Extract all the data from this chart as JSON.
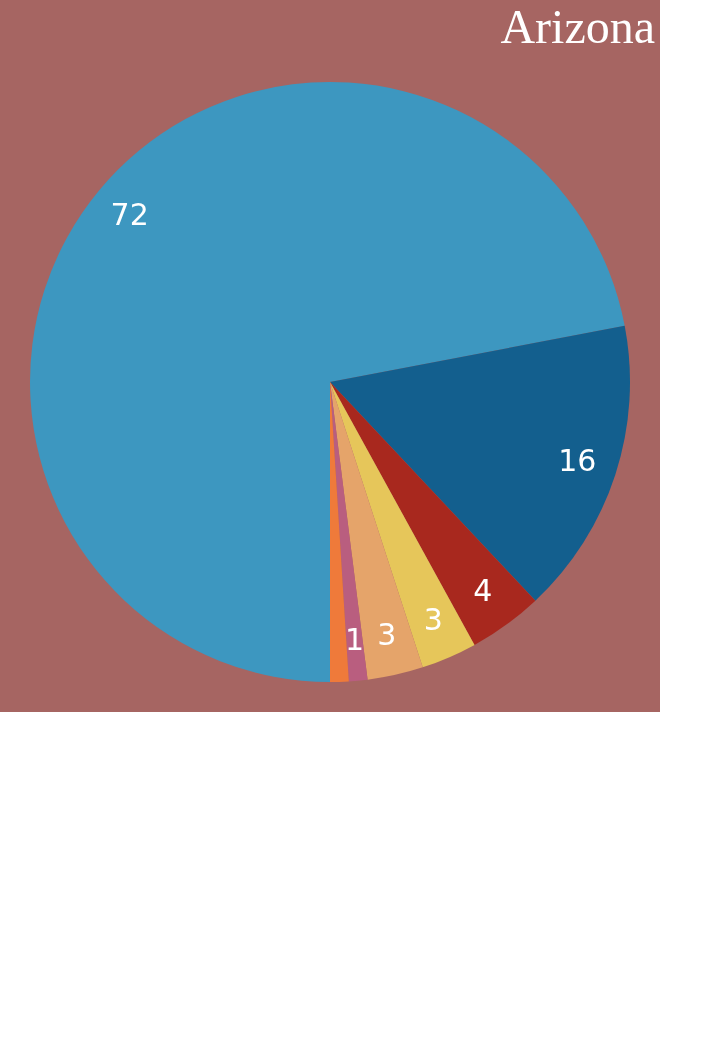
{
  "chart_data": {
    "type": "pie",
    "title": "Arizona",
    "categories": [
      null,
      null,
      null,
      null,
      null,
      null,
      null
    ],
    "values": [
      72,
      16,
      4,
      3,
      3,
      1,
      1
    ],
    "colors": [
      "#3d97c0",
      "#135f8e",
      "#a8281e",
      "#e6c65a",
      "#e5a46a",
      "#b95e7f",
      "#ef7a3a"
    ],
    "value_labels": [
      "72",
      "16",
      "4",
      "3",
      "3",
      "1",
      null
    ],
    "legend": false
  }
}
